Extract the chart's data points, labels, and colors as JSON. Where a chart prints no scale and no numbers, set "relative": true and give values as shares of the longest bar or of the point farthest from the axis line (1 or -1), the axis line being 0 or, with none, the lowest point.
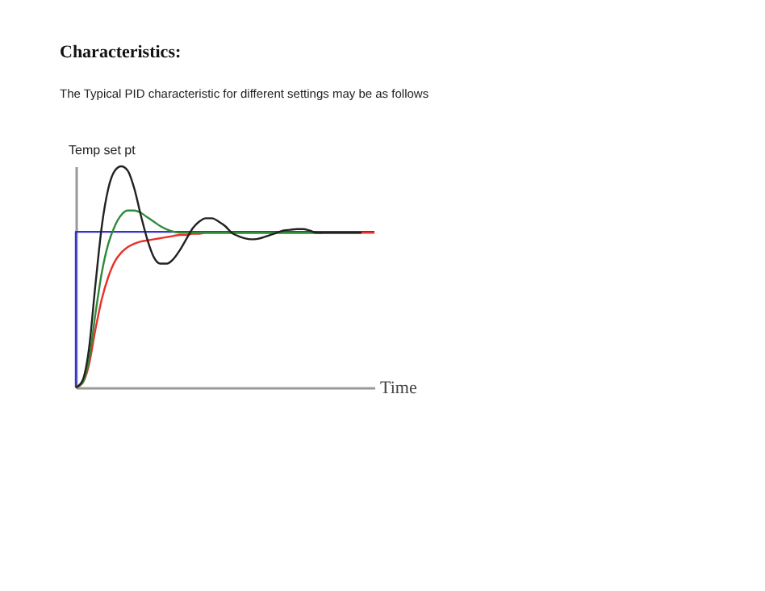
{
  "chart_data": {
    "type": "line",
    "relative": true,
    "title": "Characteristics:",
    "subtitle": "The Typical PID characteristic for different settings may be as follows",
    "ylabel": "Temp set pt",
    "xlabel": "Time",
    "categories": [
      null,
      null,
      null,
      null,
      null,
      null,
      null,
      null,
      null,
      null,
      null,
      null,
      null,
      null,
      null,
      null,
      null,
      null,
      null,
      null,
      null,
      null,
      null,
      null,
      null,
      null,
      null,
      null,
      null,
      null,
      null,
      null,
      null,
      null,
      null,
      null,
      null,
      null,
      null,
      null,
      null,
      null,
      null,
      null,
      null,
      null,
      null
    ],
    "series": [
      {
        "type": "step",
        "color": "#3333cc",
        "values": [
          0,
          0.704,
          0.704,
          0.704,
          0.704,
          0.704,
          0.704,
          0.704,
          0.704,
          0.704,
          0.704,
          0.704,
          0.704,
          0.704,
          0.704,
          0.704,
          0.704,
          0.704,
          0.704,
          0.704,
          0.704,
          0.704,
          0.704,
          0.704,
          0.704,
          0.704,
          0.704,
          0.704,
          0.704,
          0.704,
          0.704,
          0.704,
          0.704,
          0.704,
          0.704,
          0.704,
          0.704,
          0.704,
          0.704,
          0.704,
          0.704,
          0.704,
          0.704,
          0.704,
          0.704,
          0.704,
          0.704
        ]
      },
      {
        "color": "#e8322a",
        "values": [
          0,
          0.02,
          0.1,
          0.26,
          0.4,
          0.5,
          0.57,
          0.61,
          0.635,
          0.65,
          0.66,
          0.665,
          0.67,
          0.675,
          0.68,
          0.685,
          0.69,
          0.69,
          0.695,
          0.695,
          0.7,
          0.7,
          0.7,
          0.7,
          0.7,
          0.7,
          0.7,
          0.7,
          0.7,
          0.7,
          0.7,
          0.7,
          0.7,
          0.7,
          0.7,
          0.7,
          0.7,
          0.7,
          0.7,
          0.7,
          0.7,
          0.7,
          0.7,
          0.7,
          0.7,
          0.7,
          0.7
        ]
      },
      {
        "color": "#2e8b3a",
        "values": [
          0,
          0.02,
          0.12,
          0.33,
          0.52,
          0.65,
          0.73,
          0.78,
          0.8,
          0.8,
          0.79,
          0.77,
          0.75,
          0.73,
          0.715,
          0.705,
          0.7,
          0.7,
          0.7,
          0.7,
          0.7,
          0.7,
          0.7,
          0.7,
          0.7,
          0.7,
          0.7,
          0.7,
          0.7,
          0.7,
          0.7,
          0.7,
          0.7,
          0.7,
          0.7,
          0.7,
          0.7,
          0.7,
          0.7,
          null,
          null,
          null,
          null,
          null,
          null,
          null,
          null
        ]
      },
      {
        "color": "#222222",
        "values": [
          0,
          0.03,
          0.17,
          0.46,
          0.73,
          0.9,
          0.98,
          1.0,
          0.98,
          0.9,
          0.78,
          0.67,
          0.59,
          0.56,
          0.56,
          0.58,
          0.62,
          0.67,
          0.72,
          0.75,
          0.765,
          0.765,
          0.75,
          0.73,
          0.7,
          0.685,
          0.675,
          0.67,
          0.672,
          0.68,
          0.69,
          0.7,
          0.71,
          0.713,
          0.716,
          0.716,
          0.71,
          0.7,
          0.7,
          0.7,
          0.7,
          0.7,
          0.7,
          0.7,
          0.7,
          null,
          null
        ]
      }
    ],
    "grid": false,
    "tick_labels": false
  }
}
